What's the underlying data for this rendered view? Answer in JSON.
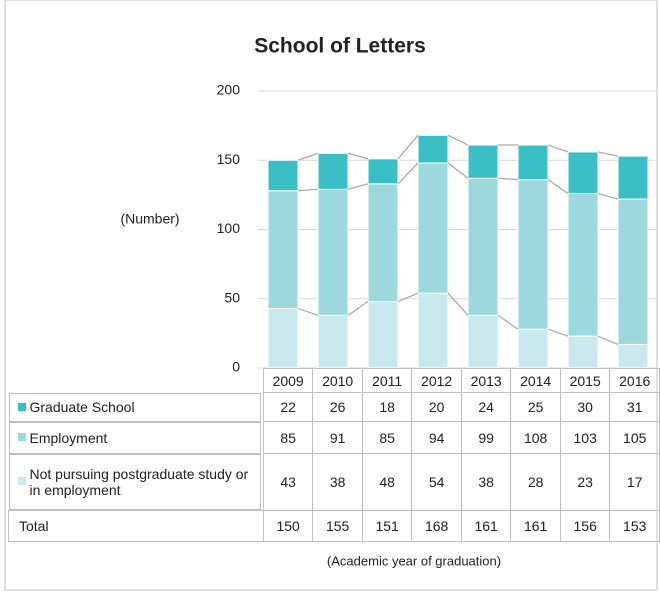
{
  "chart_data": {
    "type": "stacked-bar",
    "title": "School of Letters",
    "y_label": "(Number)",
    "x_label": "(Academic year of graduation)",
    "categories": [
      "2009",
      "2010",
      "2011",
      "2012",
      "2013",
      "2014",
      "2015",
      "2016"
    ],
    "series": [
      {
        "name": "Graduate School",
        "color": "#3bbfc6",
        "values": [
          22,
          26,
          18,
          20,
          24,
          25,
          30,
          31
        ]
      },
      {
        "name": "Employment",
        "color": "#9dd8dc",
        "values": [
          85,
          91,
          85,
          94,
          99,
          108,
          103,
          105
        ]
      },
      {
        "name": "Not pursuing postgraduate study or in employment",
        "color": "#c8e9ee",
        "values": [
          43,
          38,
          48,
          54,
          38,
          28,
          23,
          17
        ]
      }
    ],
    "total_label": "Total",
    "totals": [
      150,
      155,
      151,
      168,
      161,
      161,
      156,
      153
    ],
    "ylim": [
      0,
      200
    ],
    "yticks": [
      0,
      50,
      100,
      150,
      200
    ],
    "grid": true
  }
}
